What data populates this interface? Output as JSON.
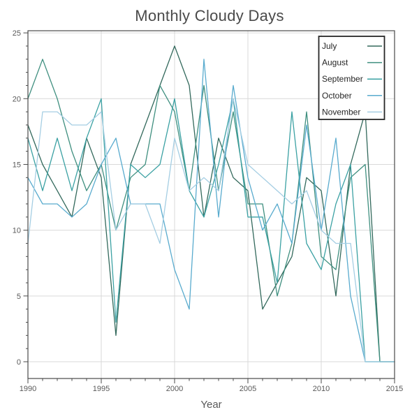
{
  "title": "Monthly Cloudy Days",
  "axes": {
    "xlabel": "Year",
    "ylabel": ""
  },
  "palette": {
    "grid": "#d9d9d9",
    "spine": "#4a4a4a",
    "tick": "#4a4a4a",
    "tick_label": "#595959",
    "title": "#4a4a4a",
    "legend_border": "#262626",
    "legend_bg": "#ffffff"
  },
  "chart_data": {
    "type": "line",
    "title": "Monthly Cloudy Days",
    "xlabel": "Year",
    "ylabel": "",
    "xlim": [
      1990,
      2015
    ],
    "ylim": [
      0,
      25
    ],
    "xticks": [
      1990,
      1995,
      2000,
      2005,
      2010,
      2015
    ],
    "yticks": [
      0,
      5,
      10,
      15,
      20,
      25
    ],
    "grid": true,
    "legend_position": "upper right",
    "x": [
      1990,
      1991,
      1992,
      1993,
      1994,
      1995,
      1996,
      1997,
      1998,
      1999,
      2000,
      2001,
      2002,
      2003,
      2004,
      2005,
      2006,
      2007,
      2008,
      2009,
      2010,
      2011,
      2012,
      2013,
      2014,
      2015
    ],
    "series": [
      {
        "name": "July",
        "color": "#33695c",
        "values": [
          18,
          15,
          13,
          11,
          17,
          14,
          2,
          15,
          18,
          21,
          24,
          21,
          11,
          17,
          14,
          13,
          4,
          6,
          8,
          14,
          13,
          5,
          15,
          19,
          0,
          0
        ]
      },
      {
        "name": "August",
        "color": "#3f8f7f",
        "values": [
          20,
          23,
          20,
          16,
          13,
          15,
          10,
          14,
          15,
          21,
          19,
          13,
          21,
          13,
          19,
          12,
          12,
          5,
          9,
          19,
          8,
          7,
          14,
          15,
          0,
          0
        ]
      },
      {
        "name": "September",
        "color": "#3ba1a3",
        "values": [
          17,
          13,
          17,
          13,
          17,
          20,
          3,
          15,
          14,
          15,
          20,
          13,
          11,
          15,
          20,
          11,
          11,
          6,
          19,
          9,
          7,
          12,
          15,
          0,
          0,
          0
        ]
      },
      {
        "name": "October",
        "color": "#59abce",
        "values": [
          14,
          12,
          12,
          11,
          12,
          15,
          17,
          12,
          12,
          12,
          7,
          4,
          23,
          11,
          21,
          14,
          10,
          12,
          9,
          18,
          10,
          17,
          5,
          0,
          0,
          0
        ]
      },
      {
        "name": "November",
        "color": "#a5cee3",
        "values": [
          9,
          19,
          19,
          18,
          18,
          19,
          10,
          12,
          12,
          9,
          17,
          13,
          14,
          13,
          20,
          15,
          14,
          13,
          12,
          13,
          10,
          9,
          9,
          0,
          0,
          0
        ]
      }
    ]
  }
}
